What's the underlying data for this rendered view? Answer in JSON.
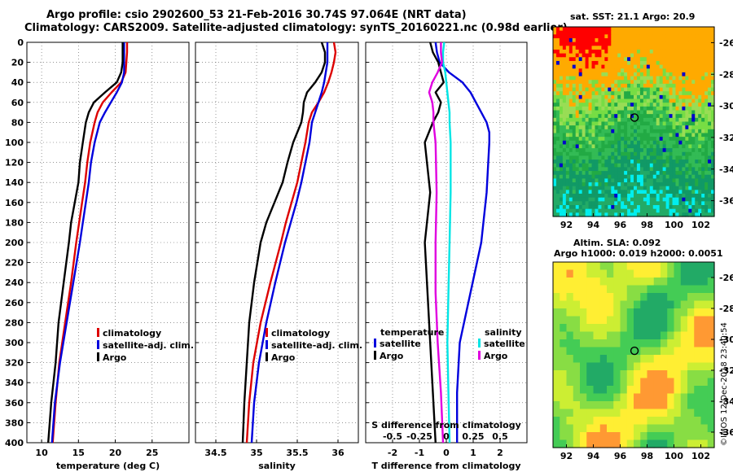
{
  "title_line1": "Argo profile: csio 2902600_53 21-Feb-2016 30.74S 97.064E (NRT data)",
  "title_line2": "Climatology: CARS2009. Satellite-adjusted climatology: synTS_20160221.nc (0.98d earlier)",
  "map_top_title": "sat. SST: 21.1 Argo: 20.9",
  "map_bottom_title1": "Altim. SLA: 0.092",
  "map_bottom_title2": "Argo h1000: 0.019 h2000: 0.0051",
  "stamp": "©IMOS 12-Dec-2018 23:40:54",
  "colors": {
    "climatology": "#dd0000",
    "satellite": "#0000dd",
    "argo": "#000000",
    "satellite_s": "#00e5e5",
    "salinity_argo": "#e000e0"
  },
  "chart_data": [
    {
      "type": "line",
      "name": "temperature",
      "xlabel": "temperature (deg C)",
      "ylabel": "",
      "xlim": [
        8,
        30
      ],
      "ylim": [
        400,
        0
      ],
      "xticks": [
        10,
        15,
        20,
        25
      ],
      "xtick_labels": [
        "10",
        "15",
        "20",
        "25"
      ],
      "yticks": [
        0,
        20,
        40,
        60,
        80,
        100,
        120,
        140,
        160,
        180,
        200,
        220,
        240,
        260,
        280,
        300,
        320,
        340,
        360,
        380,
        400
      ],
      "legend": [
        "climatology",
        "satellite-adj. clim.",
        "Argo"
      ],
      "series": [
        {
          "name": "climatology",
          "color": "#dd0000",
          "depth": [
            0,
            10,
            20,
            30,
            40,
            50,
            60,
            70,
            80,
            100,
            120,
            140,
            160,
            180,
            200,
            240,
            280,
            320,
            360,
            400
          ],
          "values": [
            21.6,
            21.6,
            21.5,
            21.4,
            20.8,
            19.5,
            18.3,
            17.6,
            17.2,
            16.6,
            16.2,
            15.9,
            15.5,
            15.1,
            14.7,
            14.0,
            13.2,
            12.4,
            11.9,
            11.5
          ]
        },
        {
          "name": "satellite-adj. clim.",
          "color": "#0000dd",
          "depth": [
            0,
            10,
            20,
            30,
            40,
            50,
            60,
            70,
            80,
            100,
            120,
            140,
            160,
            180,
            200,
            240,
            280,
            320,
            360,
            400
          ],
          "values": [
            21.2,
            21.2,
            21.2,
            21.2,
            20.9,
            20.2,
            19.4,
            18.6,
            17.9,
            17.2,
            16.7,
            16.4,
            16.0,
            15.6,
            15.2,
            14.3,
            13.4,
            12.5,
            11.8,
            11.4
          ]
        },
        {
          "name": "Argo",
          "color": "#000000",
          "depth": [
            0,
            10,
            20,
            30,
            40,
            50,
            60,
            70,
            80,
            100,
            120,
            140,
            160,
            180,
            200,
            240,
            280,
            320,
            360,
            400
          ],
          "values": [
            21.0,
            21.0,
            21.0,
            20.8,
            20.2,
            18.6,
            17.1,
            16.4,
            16.0,
            15.6,
            15.2,
            15.0,
            14.5,
            14.0,
            13.7,
            13.0,
            12.3,
            11.9,
            11.3,
            10.9
          ]
        }
      ]
    },
    {
      "type": "line",
      "name": "salinity",
      "xlabel": "salinity",
      "ylabel": "",
      "xlim": [
        34.25,
        36.25
      ],
      "ylim": [
        400,
        0
      ],
      "xticks": [
        34.5,
        35,
        35.5,
        36
      ],
      "xtick_labels": [
        "34.5",
        "35",
        "35.5",
        "36"
      ],
      "legend": [
        "climatology",
        "satellite-adj. clim.",
        "Argo"
      ],
      "series": [
        {
          "name": "climatology",
          "color": "#dd0000",
          "depth": [
            0,
            10,
            20,
            30,
            40,
            50,
            60,
            70,
            80,
            100,
            120,
            140,
            160,
            180,
            200,
            240,
            280,
            320,
            360,
            400
          ],
          "values": [
            35.95,
            35.97,
            35.95,
            35.92,
            35.88,
            35.83,
            35.76,
            35.68,
            35.64,
            35.6,
            35.55,
            35.5,
            35.43,
            35.36,
            35.3,
            35.17,
            35.05,
            34.96,
            34.91,
            34.88
          ]
        },
        {
          "name": "satellite-adj. clim.",
          "color": "#0000dd",
          "depth": [
            0,
            10,
            20,
            30,
            40,
            50,
            60,
            70,
            80,
            100,
            120,
            140,
            160,
            180,
            200,
            240,
            280,
            320,
            360,
            400
          ],
          "values": [
            35.87,
            35.87,
            35.87,
            35.85,
            35.83,
            35.8,
            35.76,
            35.72,
            35.68,
            35.65,
            35.6,
            35.55,
            35.49,
            35.42,
            35.35,
            35.23,
            35.12,
            35.03,
            34.97,
            34.94
          ]
        },
        {
          "name": "Argo",
          "color": "#000000",
          "depth": [
            0,
            10,
            20,
            30,
            40,
            50,
            60,
            70,
            80,
            100,
            120,
            140,
            160,
            180,
            200,
            240,
            280,
            320,
            360,
            400
          ],
          "values": [
            35.8,
            35.84,
            35.84,
            35.8,
            35.72,
            35.62,
            35.58,
            35.57,
            35.55,
            35.45,
            35.38,
            35.32,
            35.22,
            35.12,
            35.05,
            34.97,
            34.91,
            34.88,
            34.85,
            34.83
          ]
        }
      ]
    },
    {
      "type": "line",
      "name": "difference",
      "xlabel": "T difference from climatology",
      "xlabel_top": "S difference from climatology",
      "xlim": [
        -3,
        3
      ],
      "ylim": [
        400,
        0
      ],
      "xticks": [
        -2,
        -1,
        0,
        1,
        2
      ],
      "xtick_labels": [
        "-2",
        "-1",
        "0",
        "1",
        "2"
      ],
      "s_ticks": [
        -0.5,
        -0.25,
        0,
        0.25,
        0.5
      ],
      "s_tick_labels": [
        "-0.5",
        "-0.25",
        "0",
        "0.25",
        "0.5"
      ],
      "legend_left_title": "temperature",
      "legend_right_title": "salinity",
      "legend": [
        "satellite",
        "Argo",
        "satellite",
        "Argo"
      ],
      "series": [
        {
          "name": "temperature satellite",
          "color": "#0000dd",
          "depth": [
            0,
            10,
            20,
            30,
            40,
            50,
            60,
            70,
            80,
            90,
            100,
            150,
            200,
            250,
            300,
            350,
            400
          ],
          "values": [
            -0.4,
            -0.35,
            -0.25,
            0.1,
            0.6,
            0.9,
            1.1,
            1.3,
            1.5,
            1.6,
            1.6,
            1.5,
            1.3,
            0.9,
            0.5,
            0.4,
            0.4
          ]
        },
        {
          "name": "temperature Argo",
          "color": "#000000",
          "depth": [
            0,
            10,
            20,
            30,
            40,
            50,
            60,
            70,
            80,
            100,
            150,
            200,
            250,
            300,
            350,
            400
          ],
          "values": [
            -0.6,
            -0.5,
            -0.3,
            -0.2,
            -0.1,
            -0.4,
            -0.2,
            -0.3,
            -0.5,
            -0.8,
            -0.6,
            -0.8,
            -0.7,
            -0.6,
            -0.5,
            -0.4
          ]
        },
        {
          "name": "salinity satellite",
          "color": "#00e5e5",
          "depth": [
            0,
            10,
            20,
            30,
            40,
            50,
            60,
            70,
            80,
            100,
            150,
            200,
            250,
            300,
            350,
            400
          ],
          "values": [
            -0.02,
            -0.03,
            -0.03,
            -0.01,
            0.0,
            0.01,
            0.02,
            0.03,
            0.03,
            0.04,
            0.04,
            0.03,
            0.02,
            0.01,
            0.02,
            0.03
          ]
        },
        {
          "name": "salinity Argo",
          "color": "#e000e0",
          "depth": [
            0,
            10,
            20,
            30,
            40,
            50,
            60,
            70,
            80,
            100,
            150,
            200,
            250,
            300,
            350,
            400
          ],
          "values": [
            -0.05,
            -0.05,
            -0.04,
            -0.08,
            -0.13,
            -0.16,
            -0.13,
            -0.12,
            -0.12,
            -0.1,
            -0.09,
            -0.1,
            -0.1,
            -0.08,
            -0.05,
            -0.03
          ]
        }
      ]
    },
    {
      "type": "heatmap",
      "name": "sst_map",
      "title": "sat. SST: 21.1 Argo: 20.9",
      "xlim": [
        91,
        103
      ],
      "ylim": [
        -37,
        -25
      ],
      "xticks": [
        92,
        94,
        96,
        98,
        100,
        102
      ],
      "yticks": [
        -26,
        -28,
        -30,
        -32,
        -34,
        -36
      ],
      "argo_position": {
        "lon": 97.064,
        "lat": -30.74
      }
    },
    {
      "type": "heatmap",
      "name": "sla_map",
      "title": "Altim. SLA: 0.092",
      "xlim": [
        91,
        103
      ],
      "ylim": [
        -37,
        -25
      ],
      "xticks": [
        92,
        94,
        96,
        98,
        100,
        102
      ],
      "yticks": [
        -26,
        -28,
        -30,
        -32,
        -34,
        -36
      ],
      "argo_position": {
        "lon": 97.064,
        "lat": -30.74
      }
    }
  ]
}
